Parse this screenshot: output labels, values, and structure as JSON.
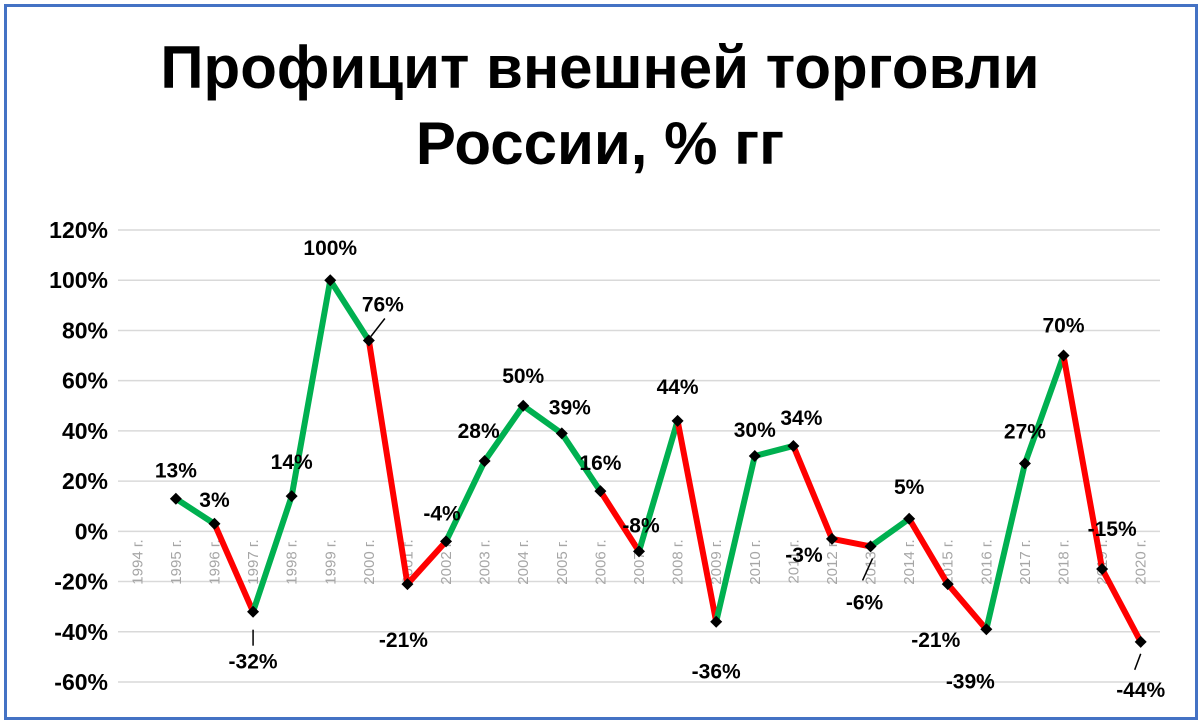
{
  "chart_data": {
    "type": "line",
    "title_lines": [
      "Профицит внешней торговли",
      "России, % гг"
    ],
    "categories": [
      "1994 г.",
      "1995 г.",
      "1996 г.",
      "1997 г.",
      "1998 г.",
      "1999 г.",
      "2000 г.",
      "2001 г.",
      "2002 г.",
      "2003 г.",
      "2004 г.",
      "2005 г.",
      "2006 г.",
      "2007 г.",
      "2008 г.",
      "2009 г.",
      "2010 г.",
      "2011 г.",
      "2012 г.",
      "2013 г.",
      "2014 г.",
      "2015 г.",
      "2016 г.",
      "2017 г.",
      "2018 г.",
      "2019 г.",
      "2020 г."
    ],
    "values": [
      null,
      13,
      3,
      -32,
      14,
      100,
      76,
      -21,
      -4,
      28,
      50,
      39,
      16,
      -8,
      44,
      -36,
      30,
      34,
      -3,
      -6,
      5,
      -21,
      -39,
      27,
      70,
      -15,
      -44
    ],
    "labels": [
      "",
      "13%",
      "3%",
      "-32%",
      "14%",
      "100%",
      "76%",
      "-21%",
      "-4%",
      "28%",
      "50%",
      "39%",
      "16%",
      "-8%",
      "44%",
      "-36%",
      "30%",
      "34%",
      "-3%",
      "-6%",
      "5%",
      "-21%",
      "-39%",
      "27%",
      "70%",
      "-15%",
      "-44%"
    ],
    "ylim": [
      -60,
      120
    ],
    "yticks": [
      "-60%",
      "-40%",
      "-20%",
      "0%",
      "20%",
      "40%",
      "60%",
      "80%",
      "100%",
      "120%"
    ],
    "grid": true,
    "legend": "none",
    "colors": {
      "positive": "#00b050",
      "negative": "#ff0000",
      "marker": "#000000",
      "grid": "#d9d9d9",
      "border": "#4472c4"
    }
  }
}
